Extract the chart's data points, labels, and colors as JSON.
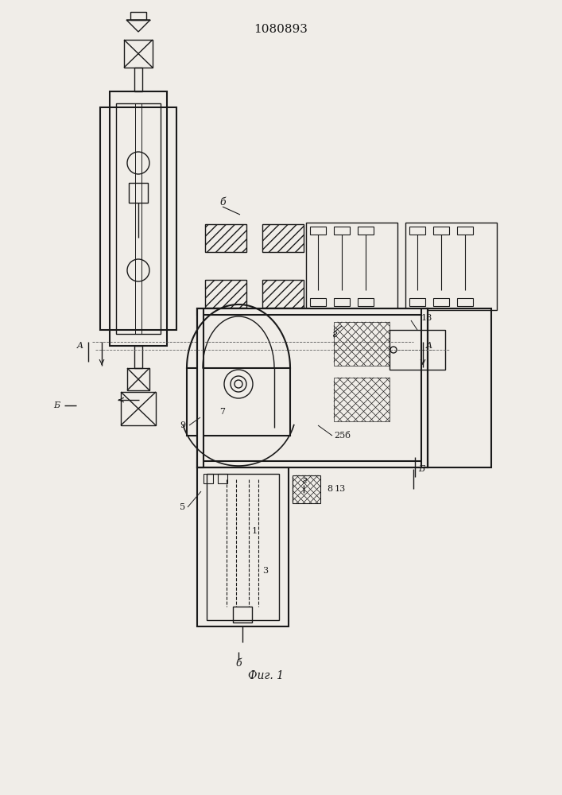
{
  "title": "1080893",
  "fig_label": "Фиг. 1",
  "bg_color": "#f0ede8",
  "line_color": "#1a1a1a",
  "hatch_color": "#1a1a1a",
  "labels": {
    "A": "A",
    "B": "Б",
    "b": "б",
    "g": "г",
    "v": "в",
    "1": "1",
    "3": "3",
    "5": "5",
    "7": "7",
    "8": "8",
    "9": "9",
    "13": "13",
    "18": "18",
    "25": "25б"
  }
}
